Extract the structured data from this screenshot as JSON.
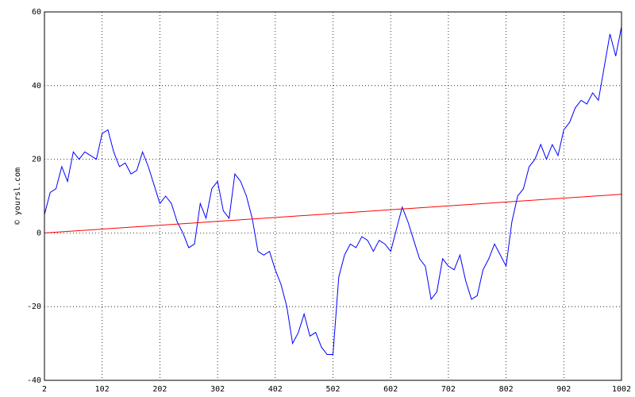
{
  "chart_data": {
    "type": "line",
    "ylabel": "© yoursl.com",
    "xlim": [
      2,
      1002
    ],
    "xticks": [
      2,
      102,
      202,
      302,
      402,
      502,
      602,
      702,
      802,
      902,
      1002
    ],
    "ylim": [
      -40,
      60
    ],
    "yticks": [
      -40,
      -20,
      0,
      20,
      40,
      60
    ],
    "grid": true,
    "series": [
      {
        "color": "#0000ff",
        "x": [
          2,
          12,
          22,
          32,
          42,
          52,
          62,
          72,
          82,
          92,
          102,
          112,
          122,
          132,
          142,
          152,
          162,
          172,
          182,
          192,
          202,
          212,
          222,
          232,
          242,
          252,
          262,
          272,
          282,
          292,
          302,
          312,
          322,
          332,
          342,
          352,
          362,
          372,
          382,
          392,
          402,
          412,
          422,
          432,
          442,
          452,
          462,
          472,
          482,
          492,
          502,
          512,
          522,
          532,
          542,
          552,
          562,
          572,
          582,
          592,
          602,
          612,
          622,
          632,
          642,
          652,
          662,
          672,
          682,
          692,
          702,
          712,
          722,
          732,
          742,
          752,
          762,
          772,
          782,
          792,
          802,
          812,
          822,
          832,
          842,
          852,
          862,
          872,
          882,
          892,
          902,
          912,
          922,
          932,
          942,
          952,
          962,
          972,
          982,
          992,
          1002
        ],
        "values": [
          5,
          11,
          12,
          18,
          14,
          22,
          20,
          22,
          21,
          20,
          27,
          28,
          22,
          18,
          19,
          16,
          17,
          22,
          18,
          13,
          8,
          10,
          8,
          3,
          0,
          -4,
          -3,
          8,
          4,
          12,
          14,
          6,
          4,
          16,
          14,
          10,
          4,
          -5,
          -6,
          -5,
          -10,
          -14,
          -20,
          -30,
          -27,
          -22,
          -28,
          -27,
          -31,
          -33,
          -33,
          -12,
          -6,
          -3,
          -4,
          -1,
          -2,
          -5,
          -2,
          -3,
          -5,
          1,
          7,
          3,
          -2,
          -7,
          -9,
          -18,
          -16,
          -7,
          -9,
          -10,
          -6,
          -13,
          -18,
          -17,
          -10,
          -7,
          -3,
          -6,
          -9,
          3,
          10,
          12,
          18,
          20,
          24,
          20,
          24,
          21,
          28,
          30,
          34,
          36,
          35,
          38,
          36,
          45,
          54,
          48,
          56
        ]
      },
      {
        "color": "#ff0000",
        "x": [
          2,
          1002
        ],
        "values": [
          0,
          10.5
        ]
      }
    ]
  }
}
